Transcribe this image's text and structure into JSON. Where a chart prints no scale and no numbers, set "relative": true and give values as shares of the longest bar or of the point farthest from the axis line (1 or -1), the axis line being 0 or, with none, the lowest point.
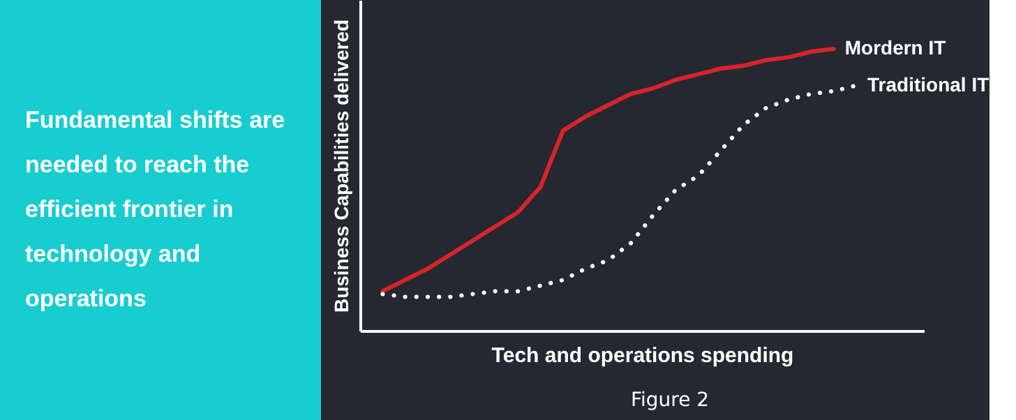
{
  "chart_data": [
    {
      "type": "other",
      "annotations": [
        "Fundamental shifts are needed to reach the efficient frontier in technology and operations"
      ]
    },
    {
      "type": "line",
      "relative": true,
      "xlabel": "Tech and operations spending",
      "ylabel": "Business Capabilities delivered",
      "annotations": [
        "Figure 2"
      ],
      "tick_labels": false,
      "marker": "none",
      "categories": [
        null,
        null,
        null,
        null,
        null,
        null,
        null,
        null,
        null,
        null,
        null,
        null,
        null,
        null,
        null,
        null,
        null,
        null,
        null,
        null,
        null,
        null
      ],
      "series": [
        {
          "name": "Mordern IT",
          "color": "#d8232a",
          "line_style": "solid",
          "values": [
            0.14,
            0.18,
            0.22,
            0.27,
            0.32,
            0.37,
            0.42,
            0.51,
            0.71,
            0.76,
            0.8,
            0.84,
            0.86,
            0.89,
            0.91,
            0.93,
            0.94,
            0.96,
            0.97,
            0.99,
            1,
            null
          ]
        },
        {
          "name": "Traditional IT",
          "color": "#ffffff",
          "line_style": "dotted",
          "values": [
            0.13,
            0.12,
            0.12,
            0.12,
            0.13,
            0.14,
            0.14,
            0.16,
            0.18,
            0.22,
            0.25,
            0.31,
            0.41,
            0.5,
            0.55,
            0.64,
            0.73,
            0.79,
            0.82,
            0.84,
            0.85,
            0.87
          ]
        }
      ]
    }
  ]
}
